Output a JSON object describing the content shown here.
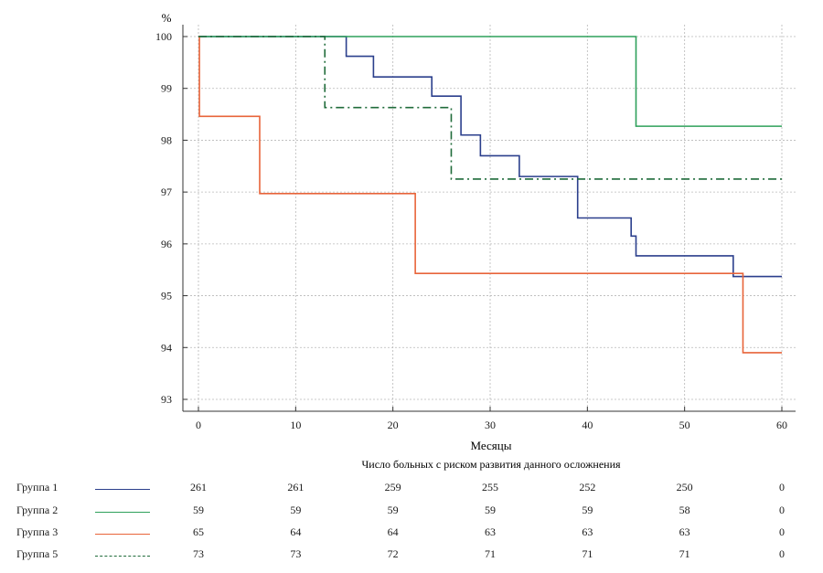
{
  "chart_data": {
    "type": "line",
    "step": true,
    "ylabel": "%",
    "xlabel": "Месяцы",
    "xlim": [
      0,
      60
    ],
    "ylim": [
      93,
      100
    ],
    "x_ticks": [
      0,
      10,
      20,
      30,
      40,
      50,
      60
    ],
    "y_ticks": [
      93,
      94,
      95,
      96,
      97,
      98,
      99,
      100
    ],
    "grid": true,
    "series": [
      {
        "name": "Группа 1",
        "color": "#2b3f8c",
        "dash": "solid",
        "x": [
          0,
          15.2,
          18.0,
          24.0,
          27.0,
          29.0,
          33.0,
          39.0,
          44.5,
          45.0,
          55.0,
          60.0
        ],
        "y": [
          100,
          99.62,
          99.22,
          98.85,
          98.1,
          97.7,
          97.3,
          96.5,
          96.15,
          95.77,
          95.37,
          95.37
        ]
      },
      {
        "name": "Группа 2",
        "color": "#2ea05a",
        "dash": "solid",
        "x": [
          0,
          45.0,
          60.0
        ],
        "y": [
          100,
          98.27,
          98.27
        ]
      },
      {
        "name": "Группа 3",
        "color": "#e8643a",
        "dash": "solid",
        "x": [
          0,
          0.1,
          6.3,
          22.3,
          56.0,
          60.0
        ],
        "y": [
          100,
          98.46,
          96.97,
          95.43,
          93.9,
          93.9
        ]
      },
      {
        "name": "Группа 5",
        "color": "#1f6b3a",
        "dash": "dashdot",
        "x": [
          0,
          13.0,
          26.0,
          60.0
        ],
        "y": [
          100,
          98.63,
          97.25,
          97.25
        ]
      }
    ],
    "risk_table": {
      "title": "Число больных с риском развития данного осложнения",
      "columns": [
        "0",
        "10",
        "20",
        "30",
        "40",
        "50",
        "60"
      ],
      "rows": [
        {
          "label": "Группа 1",
          "values": [
            "261",
            "261",
            "259",
            "255",
            "252",
            "250",
            "0"
          ]
        },
        {
          "label": "Группа 2",
          "values": [
            "59",
            "59",
            "59",
            "59",
            "59",
            "58",
            "0"
          ]
        },
        {
          "label": "Группа 3",
          "values": [
            "65",
            "64",
            "64",
            "63",
            "63",
            "63",
            "0"
          ]
        },
        {
          "label": "Группа 5",
          "values": [
            "73",
            "73",
            "72",
            "71",
            "71",
            "71",
            "0"
          ]
        }
      ]
    }
  }
}
